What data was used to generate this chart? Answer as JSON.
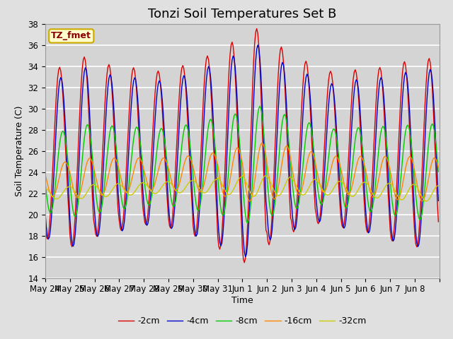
{
  "title": "Tonzi Soil Temperatures Set B",
  "xlabel": "Time",
  "ylabel": "Soil Temperature (C)",
  "ylim": [
    14,
    38
  ],
  "yticks": [
    14,
    16,
    18,
    20,
    22,
    24,
    26,
    28,
    30,
    32,
    34,
    36,
    38
  ],
  "x_labels": [
    "May 24",
    "May 25",
    "May 26",
    "May 27",
    "May 28",
    "May 29",
    "May 30",
    "May 31",
    "Jun 1",
    "Jun 2",
    "Jun 3",
    "Jun 4",
    "Jun 5",
    "Jun 6",
    "Jun 7",
    "Jun 8"
  ],
  "legend_label": "TZ_fmet",
  "series_labels": [
    "-2cm",
    "-4cm",
    "-8cm",
    "-16cm",
    "-32cm"
  ],
  "series_colors": [
    "#dd0000",
    "#0000cc",
    "#00cc00",
    "#ff8800",
    "#cccc00"
  ],
  "background_color": "#e0e0e0",
  "plot_bg_color": "#d4d4d4",
  "n_days": 16,
  "ppd": 24,
  "title_fontsize": 13,
  "axis_label_fontsize": 9,
  "tick_fontsize": 8.5,
  "legend_fontsize": 9
}
